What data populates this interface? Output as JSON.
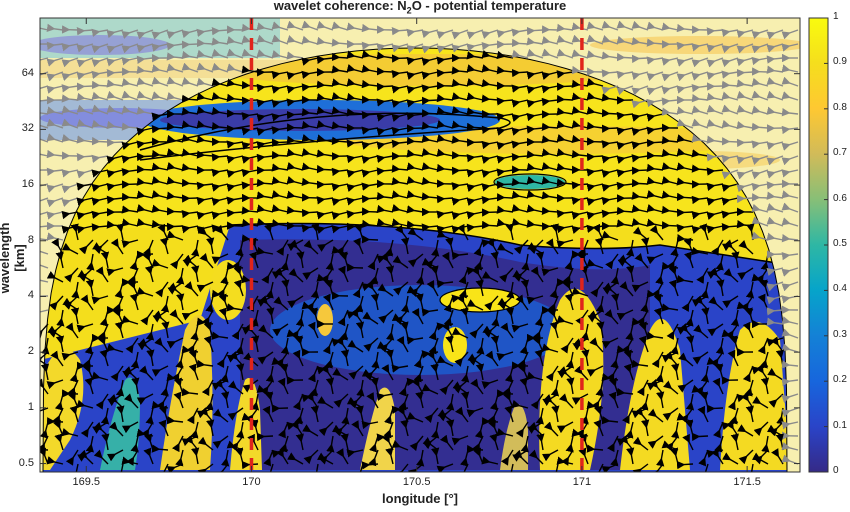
{
  "chart_data": {
    "type": "heatmap",
    "title": "wavelet coherence: N2O - potential temperature",
    "title_parts": {
      "pre": "wavelet coherence: N",
      "sub": "2",
      "post": "O - potential temperature"
    },
    "xlabel": "longitude [°]",
    "ylabel": "wavelength [km]",
    "xlim": [
      169.36,
      171.66
    ],
    "ylim": [
      0.45,
      128
    ],
    "yscale": "log2",
    "x_ticks": [
      "169.5",
      "170",
      "170.5",
      "171",
      "171.5"
    ],
    "x_tick_values": [
      169.5,
      170,
      170.5,
      171,
      171.5
    ],
    "y_ticks": [
      "0.5",
      "1",
      "2",
      "4",
      "8",
      "16",
      "32",
      "64"
    ],
    "y_tick_values": [
      0.5,
      1,
      2,
      4,
      8,
      16,
      32,
      64
    ],
    "colorbar": {
      "range": [
        0,
        1
      ],
      "ticks": [
        "0",
        "0.1",
        "0.2",
        "0.3",
        "0.4",
        "0.5",
        "0.6",
        "0.7",
        "0.8",
        "0.9",
        "1"
      ],
      "colormap": "parula",
      "colors": [
        "#352a87",
        "#0f5cdd",
        "#1481d6",
        "#06a4ca",
        "#2eb7a4",
        "#87bf77",
        "#d1bb59",
        "#fec832",
        "#f9e418",
        "#f9fb0e"
      ]
    },
    "vertical_markers": [
      {
        "x": 170.0,
        "color": "#e0241b",
        "style": "dashed"
      },
      {
        "x": 171.0,
        "color": "#e0241b",
        "style": "dashed"
      }
    ],
    "cone_of_influence": true,
    "arrows": "phase arrows, black inside cone, grey outside"
  }
}
